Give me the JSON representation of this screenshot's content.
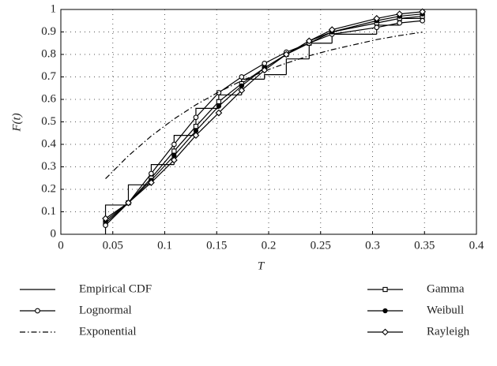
{
  "chart_data": {
    "type": "line",
    "xlabel": "T",
    "ylabel": "F(t)",
    "x": [
      0.043,
      0.065,
      0.087,
      0.109,
      0.13,
      0.152,
      0.174,
      0.196,
      0.217,
      0.239,
      0.261,
      0.304,
      0.326,
      0.348
    ],
    "xlim": [
      0,
      0.4
    ],
    "xticks": [
      0,
      0.05,
      0.1,
      0.15,
      0.2,
      0.25,
      0.3,
      0.35,
      0.4
    ],
    "ylim": [
      0,
      1
    ],
    "yticks": [
      0,
      0.1,
      0.2,
      0.3,
      0.4,
      0.5,
      0.6,
      0.7,
      0.8,
      0.9,
      1
    ],
    "grid": true,
    "legend": "bottom",
    "series": [
      {
        "name": "Empirical CDF",
        "color": "#000000",
        "step": true,
        "marker": "none",
        "dash": "solid",
        "values": [
          0.13,
          0.22,
          0.31,
          0.44,
          0.56,
          0.62,
          0.69,
          0.71,
          0.78,
          0.85,
          0.89,
          0.93,
          0.96,
          0.98
        ]
      },
      {
        "name": "Gamma",
        "color": "#000000",
        "marker": "square",
        "dash": "solid",
        "values": [
          0.05,
          0.14,
          0.25,
          0.37,
          0.48,
          0.59,
          0.67,
          0.74,
          0.8,
          0.85,
          0.9,
          0.94,
          0.96,
          0.97
        ]
      },
      {
        "name": "Lognormal",
        "color": "#000000",
        "marker": "circle",
        "dash": "solid",
        "values": [
          0.04,
          0.14,
          0.27,
          0.4,
          0.52,
          0.63,
          0.7,
          0.76,
          0.81,
          0.85,
          0.89,
          0.92,
          0.94,
          0.95
        ]
      },
      {
        "name": "Weibull",
        "color": "#000000",
        "marker": "dot",
        "dash": "solid",
        "values": [
          0.06,
          0.14,
          0.24,
          0.35,
          0.46,
          0.57,
          0.66,
          0.74,
          0.8,
          0.86,
          0.9,
          0.95,
          0.97,
          0.98
        ]
      },
      {
        "name": "Exponential",
        "color": "#000000",
        "marker": "none",
        "dash": "dashdot",
        "values": [
          0.247,
          0.349,
          0.437,
          0.513,
          0.576,
          0.633,
          0.683,
          0.726,
          0.761,
          0.794,
          0.821,
          0.866,
          0.884,
          0.899
        ]
      },
      {
        "name": "Rayleigh",
        "color": "#000000",
        "marker": "diamond",
        "dash": "solid",
        "values": [
          0.07,
          0.14,
          0.23,
          0.33,
          0.44,
          0.54,
          0.64,
          0.73,
          0.8,
          0.86,
          0.91,
          0.96,
          0.98,
          0.99
        ]
      }
    ]
  }
}
